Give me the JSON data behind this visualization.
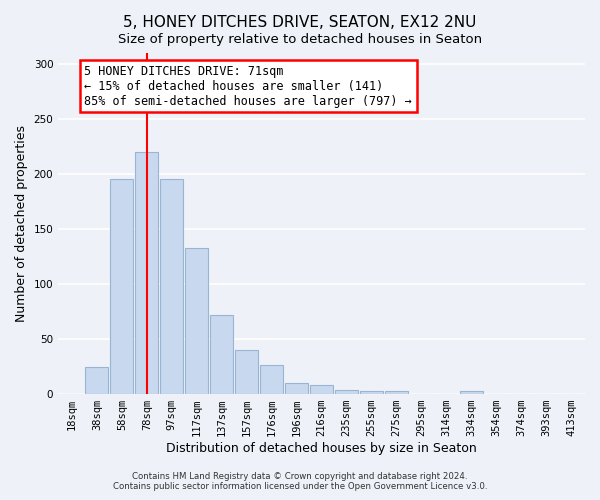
{
  "title": "5, HONEY DITCHES DRIVE, SEATON, EX12 2NU",
  "subtitle": "Size of property relative to detached houses in Seaton",
  "xlabel": "Distribution of detached houses by size in Seaton",
  "ylabel": "Number of detached properties",
  "bar_labels": [
    "18sqm",
    "38sqm",
    "58sqm",
    "78sqm",
    "97sqm",
    "117sqm",
    "137sqm",
    "157sqm",
    "176sqm",
    "196sqm",
    "216sqm",
    "235sqm",
    "255sqm",
    "275sqm",
    "295sqm",
    "314sqm",
    "334sqm",
    "354sqm",
    "374sqm",
    "393sqm",
    "413sqm"
  ],
  "bar_values": [
    0,
    25,
    195,
    220,
    195,
    133,
    72,
    40,
    26,
    10,
    8,
    4,
    3,
    3,
    0,
    0,
    3,
    0,
    0,
    0,
    0
  ],
  "bar_color": "#c8d8ee",
  "bar_edge_color": "#9ab4d4",
  "vline_x": 3,
  "vline_color": "red",
  "annotation_title": "5 HONEY DITCHES DRIVE: 71sqm",
  "annotation_line1": "← 15% of detached houses are smaller (141)",
  "annotation_line2": "85% of semi-detached houses are larger (797) →",
  "annotation_box_color": "white",
  "annotation_box_edge": "red",
  "ylim": [
    0,
    310
  ],
  "yticks": [
    0,
    50,
    100,
    150,
    200,
    250,
    300
  ],
  "footer1": "Contains HM Land Registry data © Crown copyright and database right 2024.",
  "footer2": "Contains public sector information licensed under the Open Government Licence v3.0.",
  "bg_color": "#eef2f8",
  "title_fontsize": 11,
  "subtitle_fontsize": 9.5,
  "axis_label_fontsize": 9,
  "tick_fontsize": 7.5,
  "annotation_fontsize": 8.5,
  "footer_fontsize": 6.2
}
